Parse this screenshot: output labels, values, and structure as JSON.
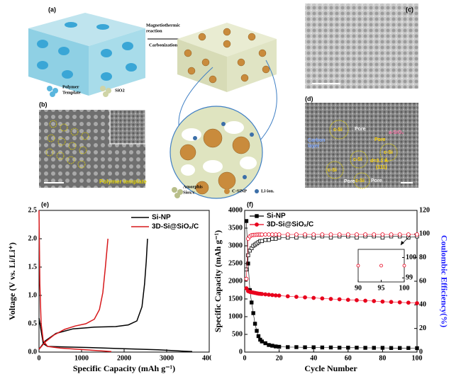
{
  "figure": {
    "panel_a": {
      "label": "(a)",
      "arrow_top": [
        "Magnetiothermic",
        "reaction"
      ],
      "arrow_bottom": "Carbonization",
      "template": [
        "Polymer",
        "Template"
      ],
      "oxide": "SiO2",
      "bottom_legend": [
        "Amorphis",
        "Siox/c",
        "C-SiNP",
        "Li-ion."
      ]
    },
    "panel_b": {
      "label": "(b)",
      "annotation": "Polymer template"
    },
    "panel_c": {
      "label": "(c)"
    },
    "panel_d": {
      "label": "(d)",
      "annotations": [
        "c-Si",
        "Pore",
        "Carbon",
        "layer",
        "a-SiO₂",
        "Pore",
        "c-Si",
        "c-Si",
        "d=3.1 Å",
        "(111)",
        "c-Si",
        "Pore",
        "c-Si",
        "Pore"
      ]
    }
  },
  "chart_data": [
    {
      "type": "line",
      "label": "(e)",
      "xlabel": "Specific Capacity (mAh g⁻¹)",
      "ylabel": "Voltage (V vs. Li/Li⁺)",
      "xlim": [
        0,
        4000
      ],
      "xticks": [
        0,
        1000,
        2000,
        3000,
        4000
      ],
      "ylim": [
        0,
        2.5
      ],
      "yticks": [
        {
          "value": 0,
          "label": "0.0"
        },
        0.5,
        {
          "value": 1,
          "label": "1.0"
        },
        1.5,
        {
          "value": 2,
          "label": "2.0"
        },
        2.5
      ],
      "legend": "upper right",
      "series": [
        {
          "name": "Si-NP",
          "color": "#000000",
          "x": [
            0,
            100,
            200,
            600,
            1200,
            2000,
            2800,
            3300,
            3600,
            null,
            0,
            150,
            400,
            800,
            1300,
            1800,
            2100,
            2300,
            2420,
            2480,
            2520,
            2550
          ],
          "values": [
            0.6,
            0.15,
            0.1,
            0.09,
            0.08,
            0.06,
            0.04,
            0.02,
            0.01,
            null,
            0.05,
            0.2,
            0.33,
            0.41,
            0.44,
            0.45,
            0.48,
            0.55,
            0.8,
            1.2,
            1.6,
            2.0
          ]
        },
        {
          "name": "3D-Si@SiOₓ/C",
          "color": "#d7191c",
          "x": [
            0,
            20,
            50,
            100,
            200,
            500,
            900,
            1300,
            1700,
            null,
            0,
            150,
            350,
            600,
            850,
            1100,
            1300,
            1420,
            1500,
            1560,
            1620
          ],
          "values": [
            2.5,
            1.2,
            0.5,
            0.2,
            0.1,
            0.07,
            0.05,
            0.03,
            0.01,
            null,
            0.05,
            0.18,
            0.3,
            0.4,
            0.46,
            0.5,
            0.58,
            0.75,
            1.05,
            1.5,
            2.0
          ]
        }
      ]
    },
    {
      "type": "dual",
      "label": "(f)",
      "xlabel": "Cycle Number",
      "ylabel": "Specific Capacity (mAh g⁻¹)",
      "y2label": "Coulombic Efficiency(%)",
      "xlim": [
        0,
        100
      ],
      "xticks": [
        0,
        20,
        40,
        60,
        80,
        100
      ],
      "ylim": [
        0,
        4000
      ],
      "yticks": [
        0,
        500,
        1000,
        1500,
        2000,
        2500,
        3000,
        3500,
        4000
      ],
      "y2lim": [
        0,
        120
      ],
      "y2ticks": [
        0,
        20,
        40,
        60,
        80,
        100,
        120
      ],
      "legend": "upper left",
      "x": [
        1,
        2,
        3,
        4,
        5,
        6,
        7,
        8,
        9,
        10,
        12,
        14,
        16,
        18,
        20,
        25,
        30,
        35,
        40,
        45,
        50,
        55,
        60,
        65,
        70,
        75,
        80,
        85,
        90,
        95,
        100
      ],
      "series": [
        {
          "name": "Si-NP",
          "color": "#000000",
          "marker": "square",
          "values": [
            3700,
            2500,
            1750,
            1400,
            1100,
            800,
            600,
            450,
            350,
            300,
            250,
            200,
            180,
            160,
            150,
            140,
            140,
            135,
            135,
            130,
            130,
            125,
            125,
            125,
            120,
            120,
            120,
            115,
            115,
            115,
            110
          ],
          "efficiency": [
            70,
            82,
            86,
            88,
            90,
            91,
            92,
            93,
            94,
            94,
            95,
            95,
            96,
            96,
            97,
            97,
            97,
            98,
            97,
            98,
            97,
            98,
            98,
            97,
            98,
            98,
            97,
            98,
            98,
            97,
            98
          ]
        },
        {
          "name": "3D-Si@SiOₓ/C",
          "color": "#e8001c",
          "marker": "circle",
          "values": [
            1800,
            1720,
            1700,
            1690,
            1680,
            1670,
            1660,
            1650,
            1645,
            1640,
            1630,
            1620,
            1610,
            1600,
            1595,
            1575,
            1560,
            1545,
            1530,
            1515,
            1500,
            1490,
            1475,
            1465,
            1450,
            1440,
            1425,
            1415,
            1405,
            1395,
            1380
          ],
          "efficiency": [
            62,
            96,
            98,
            99,
            99.2,
            99.3,
            99.4,
            99.5,
            99.5,
            99.5,
            99.6,
            99.6,
            99.6,
            99.6,
            99.6,
            99.6,
            99.6,
            99.6,
            99.6,
            99.6,
            99.6,
            99.6,
            99.6,
            99.6,
            99.6,
            99.6,
            99.6,
            99.6,
            99.6,
            99.6,
            99.6
          ]
        }
      ],
      "inset": {
        "xlim": [
          90,
          100
        ],
        "xticks": [
          90,
          95,
          100
        ],
        "ylim": [
          98.8,
          100.4
        ],
        "yticks": [
          99,
          100
        ]
      }
    }
  ]
}
